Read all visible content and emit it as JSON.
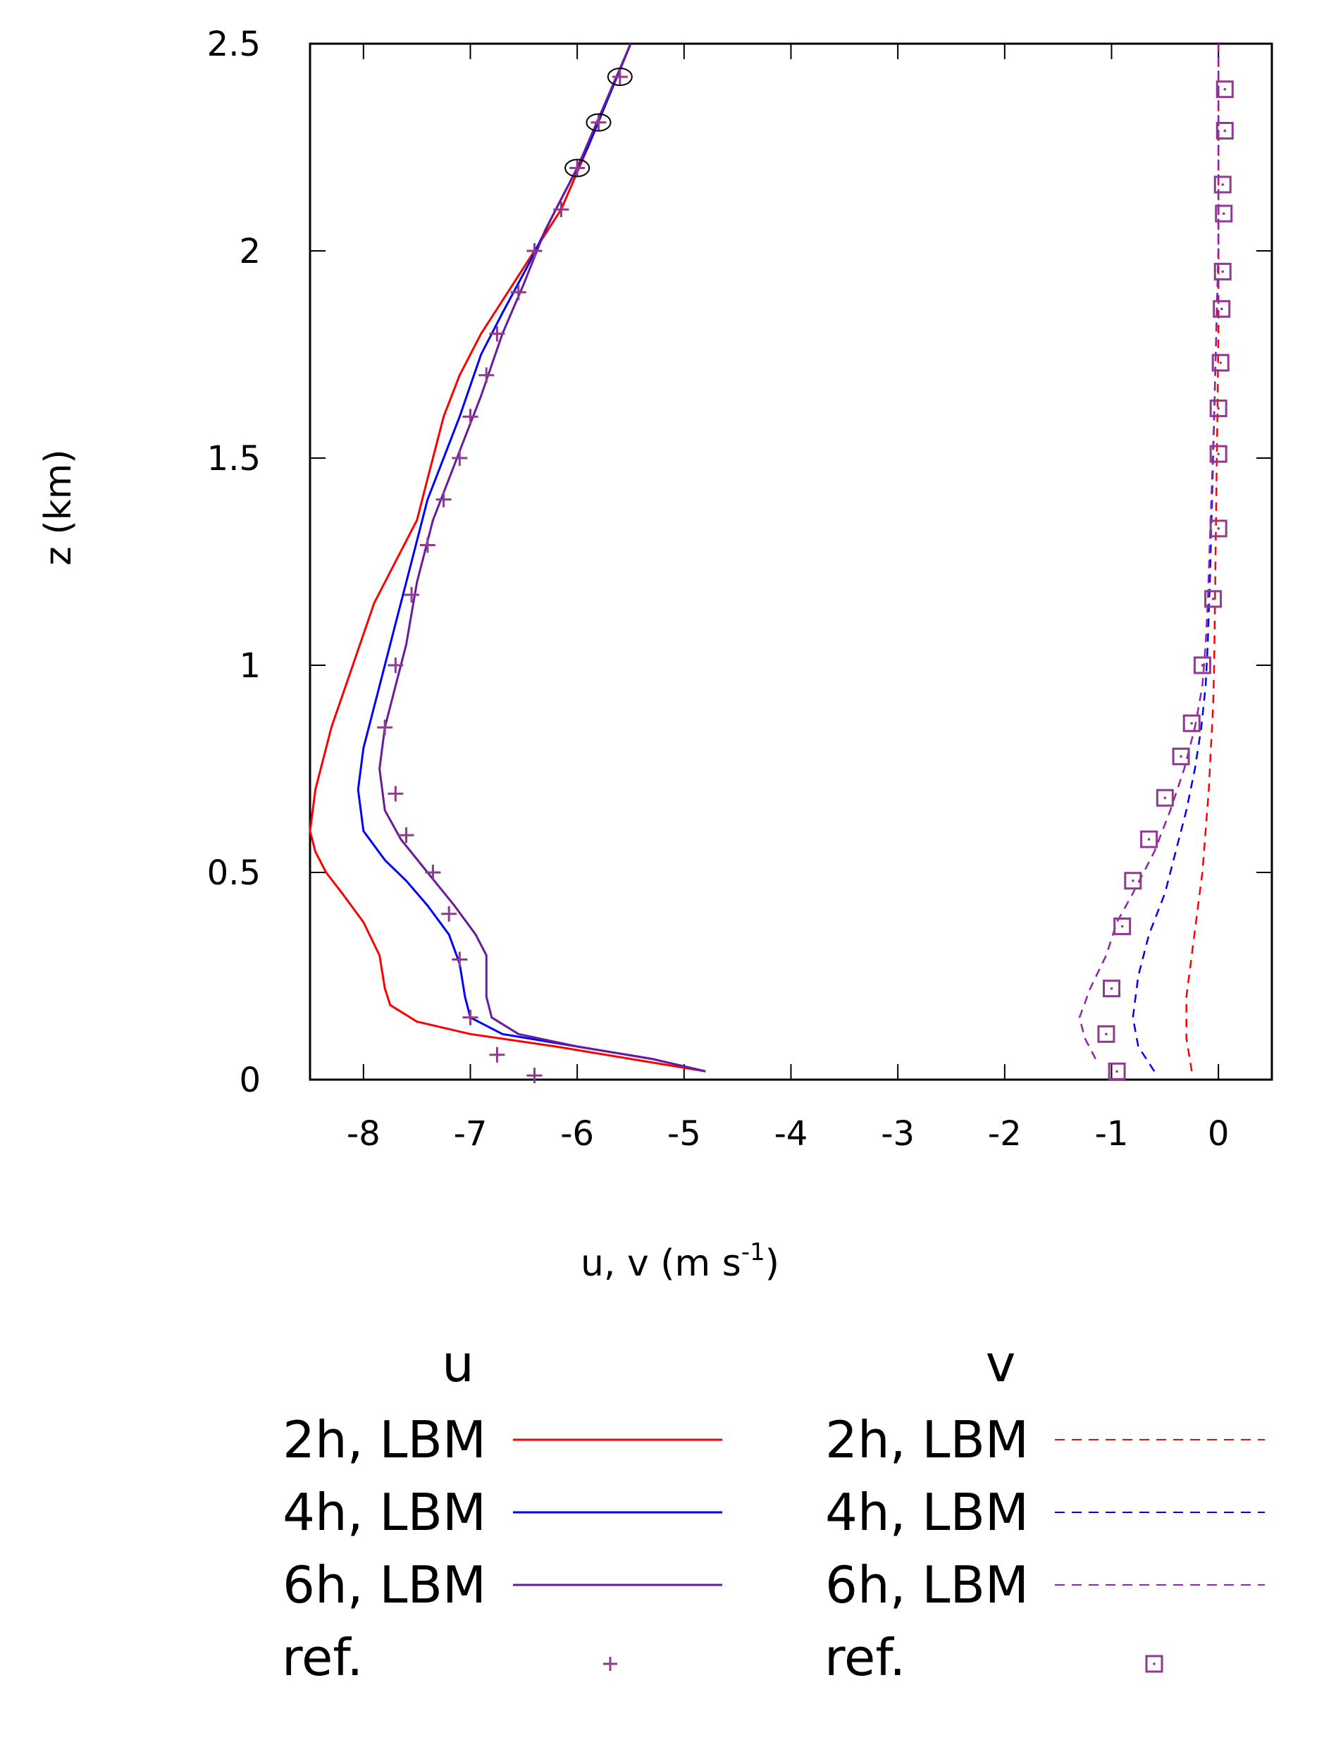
{
  "chart_data": {
    "type": "line",
    "xlabel_base": "u, v (m s",
    "xlabel_exp": "-1",
    "xlabel_close": ")",
    "ylabel": "z (km)",
    "xlim": [
      -8.5,
      0.5
    ],
    "ylim": [
      0,
      2.5
    ],
    "x_ticks": [
      -8,
      -7,
      -6,
      -5,
      -4,
      -3,
      -2,
      -1,
      0
    ],
    "x_tick_labels": [
      "-8",
      "-7",
      "-6",
      "-5",
      "-4",
      "-3",
      "-2",
      "-1",
      "0"
    ],
    "y_ticks": [
      0,
      0.5,
      1,
      1.5,
      2,
      2.5
    ],
    "y_tick_labels": [
      "0",
      "0.5",
      "1",
      "1.5",
      "2",
      "2.5"
    ],
    "legend": {
      "u_header": "u",
      "v_header": "v",
      "u_entries": [
        "2h, LBM",
        "4h, LBM",
        "6h, LBM",
        "ref."
      ],
      "v_entries": [
        "2h, LBM",
        "4h, LBM",
        "6h, LBM",
        "ref."
      ]
    },
    "series": [
      {
        "name": "u 2h, LBM",
        "component": "u",
        "style": "solid",
        "color": "#ff0000",
        "points": [
          [
            -4.8,
            0.02
          ],
          [
            -5.5,
            0.05
          ],
          [
            -6.2,
            0.08
          ],
          [
            -7.0,
            0.11
          ],
          [
            -7.5,
            0.14
          ],
          [
            -7.75,
            0.18
          ],
          [
            -7.8,
            0.22
          ],
          [
            -7.85,
            0.3
          ],
          [
            -8.0,
            0.38
          ],
          [
            -8.2,
            0.45
          ],
          [
            -8.35,
            0.5
          ],
          [
            -8.45,
            0.55
          ],
          [
            -8.5,
            0.6
          ],
          [
            -8.45,
            0.7
          ],
          [
            -8.3,
            0.85
          ],
          [
            -8.1,
            1.0
          ],
          [
            -7.9,
            1.15
          ],
          [
            -7.7,
            1.25
          ],
          [
            -7.5,
            1.35
          ],
          [
            -7.4,
            1.45
          ],
          [
            -7.25,
            1.6
          ],
          [
            -7.1,
            1.7
          ],
          [
            -6.9,
            1.8
          ],
          [
            -6.65,
            1.9
          ],
          [
            -6.4,
            2.0
          ],
          [
            -6.15,
            2.1
          ],
          [
            -5.9,
            2.25
          ],
          [
            -5.5,
            2.5
          ]
        ]
      },
      {
        "name": "u 4h, LBM",
        "component": "u",
        "style": "solid",
        "color": "#0000ff",
        "points": [
          [
            -4.8,
            0.02
          ],
          [
            -5.3,
            0.05
          ],
          [
            -6.0,
            0.08
          ],
          [
            -6.7,
            0.11
          ],
          [
            -7.0,
            0.15
          ],
          [
            -7.05,
            0.2
          ],
          [
            -7.1,
            0.28
          ],
          [
            -7.2,
            0.35
          ],
          [
            -7.4,
            0.42
          ],
          [
            -7.6,
            0.48
          ],
          [
            -7.8,
            0.53
          ],
          [
            -8.0,
            0.6
          ],
          [
            -8.05,
            0.7
          ],
          [
            -8.0,
            0.8
          ],
          [
            -7.85,
            0.95
          ],
          [
            -7.7,
            1.1
          ],
          [
            -7.55,
            1.25
          ],
          [
            -7.4,
            1.4
          ],
          [
            -7.25,
            1.5
          ],
          [
            -7.1,
            1.6
          ],
          [
            -6.9,
            1.75
          ],
          [
            -6.7,
            1.85
          ],
          [
            -6.45,
            1.97
          ],
          [
            -6.2,
            2.1
          ],
          [
            -5.9,
            2.25
          ],
          [
            -5.5,
            2.5
          ]
        ]
      },
      {
        "name": "u 6h, LBM",
        "component": "u",
        "style": "solid",
        "color": "#6a1b9a",
        "points": [
          [
            -4.8,
            0.02
          ],
          [
            -5.3,
            0.05
          ],
          [
            -6.0,
            0.08
          ],
          [
            -6.55,
            0.11
          ],
          [
            -6.8,
            0.15
          ],
          [
            -6.85,
            0.2
          ],
          [
            -6.85,
            0.3
          ],
          [
            -6.95,
            0.35
          ],
          [
            -7.15,
            0.42
          ],
          [
            -7.4,
            0.5
          ],
          [
            -7.65,
            0.58
          ],
          [
            -7.8,
            0.65
          ],
          [
            -7.85,
            0.75
          ],
          [
            -7.8,
            0.85
          ],
          [
            -7.7,
            0.95
          ],
          [
            -7.6,
            1.05
          ],
          [
            -7.5,
            1.2
          ],
          [
            -7.35,
            1.35
          ],
          [
            -7.2,
            1.45
          ],
          [
            -7.05,
            1.55
          ],
          [
            -6.9,
            1.65
          ],
          [
            -6.7,
            1.8
          ],
          [
            -6.5,
            1.92
          ],
          [
            -6.3,
            2.05
          ],
          [
            -6.0,
            2.2
          ],
          [
            -5.5,
            2.5
          ]
        ]
      },
      {
        "name": "v 2h, LBM",
        "component": "v",
        "style": "dashed",
        "color": "#ff0000",
        "points": [
          [
            -0.25,
            0.02
          ],
          [
            -0.3,
            0.1
          ],
          [
            -0.3,
            0.2
          ],
          [
            -0.25,
            0.3
          ],
          [
            -0.2,
            0.4
          ],
          [
            -0.15,
            0.5
          ],
          [
            -0.12,
            0.6
          ],
          [
            -0.09,
            0.7
          ],
          [
            -0.07,
            0.8
          ],
          [
            -0.05,
            0.9
          ],
          [
            -0.04,
            1.0
          ],
          [
            -0.03,
            1.2
          ],
          [
            -0.02,
            1.4
          ],
          [
            -0.01,
            1.6
          ],
          [
            0,
            1.8
          ],
          [
            0,
            2.0
          ],
          [
            0,
            2.25
          ],
          [
            0,
            2.5
          ]
        ]
      },
      {
        "name": "v 4h, LBM",
        "component": "v",
        "style": "dashed",
        "color": "#0000ff",
        "points": [
          [
            -0.6,
            0.02
          ],
          [
            -0.75,
            0.08
          ],
          [
            -0.8,
            0.15
          ],
          [
            -0.75,
            0.25
          ],
          [
            -0.65,
            0.35
          ],
          [
            -0.5,
            0.45
          ],
          [
            -0.4,
            0.55
          ],
          [
            -0.3,
            0.65
          ],
          [
            -0.22,
            0.75
          ],
          [
            -0.16,
            0.85
          ],
          [
            -0.12,
            0.95
          ],
          [
            -0.1,
            1.05
          ],
          [
            -0.08,
            1.2
          ],
          [
            -0.06,
            1.4
          ],
          [
            -0.04,
            1.6
          ],
          [
            -0.02,
            1.8
          ],
          [
            0,
            2.0
          ],
          [
            0,
            2.25
          ],
          [
            0,
            2.5
          ]
        ]
      },
      {
        "name": "v 6h, LBM",
        "component": "v",
        "style": "dashed",
        "color": "#8e24aa",
        "points": [
          [
            -1.15,
            0.05
          ],
          [
            -1.25,
            0.1
          ],
          [
            -1.3,
            0.15
          ],
          [
            -1.2,
            0.22
          ],
          [
            -1.05,
            0.3
          ],
          [
            -0.95,
            0.38
          ],
          [
            -0.8,
            0.45
          ],
          [
            -0.6,
            0.55
          ],
          [
            -0.45,
            0.65
          ],
          [
            -0.32,
            0.75
          ],
          [
            -0.22,
            0.85
          ],
          [
            -0.15,
            0.95
          ],
          [
            -0.12,
            1.05
          ],
          [
            -0.1,
            1.15
          ],
          [
            -0.08,
            1.3
          ],
          [
            -0.06,
            1.45
          ],
          [
            -0.04,
            1.6
          ],
          [
            -0.02,
            1.8
          ],
          [
            0,
            2.0
          ],
          [
            0,
            2.25
          ],
          [
            0,
            2.5
          ]
        ]
      },
      {
        "name": "u ref.",
        "component": "u",
        "style": "plus",
        "color": "#8e3a8e",
        "points": [
          [
            -6.4,
            0.01
          ],
          [
            -6.75,
            0.06
          ],
          [
            -7.0,
            0.15
          ],
          [
            -7.1,
            0.29
          ],
          [
            -7.2,
            0.4
          ],
          [
            -7.35,
            0.5
          ],
          [
            -7.6,
            0.59
          ],
          [
            -7.7,
            0.69
          ],
          [
            -7.8,
            0.85
          ],
          [
            -7.7,
            1.0
          ],
          [
            -7.55,
            1.17
          ],
          [
            -7.4,
            1.29
          ],
          [
            -7.25,
            1.4
          ],
          [
            -7.1,
            1.5
          ],
          [
            -7.0,
            1.6
          ],
          [
            -6.85,
            1.7
          ],
          [
            -6.75,
            1.8
          ],
          [
            -6.55,
            1.9
          ],
          [
            -6.4,
            2.0
          ],
          [
            -6.15,
            2.1
          ],
          [
            -6.0,
            2.2
          ],
          [
            -5.8,
            2.31
          ],
          [
            -5.6,
            2.42
          ]
        ]
      },
      {
        "name": "v ref.",
        "component": "v",
        "style": "square",
        "color": "#8e3a8e",
        "points": [
          [
            -0.95,
            0.02
          ],
          [
            -1.05,
            0.11
          ],
          [
            -1.0,
            0.22
          ],
          [
            -0.9,
            0.37
          ],
          [
            -0.8,
            0.48
          ],
          [
            -0.65,
            0.58
          ],
          [
            -0.5,
            0.68
          ],
          [
            -0.35,
            0.78
          ],
          [
            -0.25,
            0.86
          ],
          [
            -0.15,
            1.0
          ],
          [
            -0.05,
            1.16
          ],
          [
            0.0,
            1.33
          ],
          [
            0.0,
            1.51
          ],
          [
            0.0,
            1.62
          ],
          [
            0.02,
            1.73
          ],
          [
            0.03,
            1.86
          ],
          [
            0.04,
            1.95
          ],
          [
            0.05,
            2.09
          ],
          [
            0.04,
            2.16
          ],
          [
            0.06,
            2.29
          ],
          [
            0.06,
            2.39
          ]
        ]
      }
    ],
    "circled_points": [
      [
        -6.0,
        2.2
      ],
      [
        -5.8,
        2.31
      ],
      [
        -5.6,
        2.42
      ]
    ]
  }
}
